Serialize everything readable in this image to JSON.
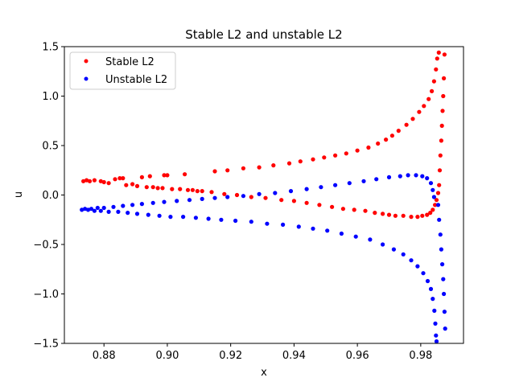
{
  "chart_data": {
    "type": "scatter",
    "title": "Stable L2 and unstable L2",
    "xlabel": "x",
    "ylabel": "u",
    "xlim": [
      0.8675,
      0.9935
    ],
    "ylim": [
      -1.5,
      1.5
    ],
    "xticks": [
      0.88,
      0.9,
      0.92,
      0.94,
      0.96,
      0.98
    ],
    "xtick_labels": [
      "0.88",
      "0.90",
      "0.92",
      "0.94",
      "0.96",
      "0.98"
    ],
    "yticks": [
      -1.5,
      -1.0,
      -0.5,
      0.0,
      0.5,
      1.0,
      1.5
    ],
    "ytick_labels": [
      "−1.5",
      "−1.0",
      "−0.5",
      "0.0",
      "0.5",
      "1.0",
      "1.5"
    ],
    "grid": false,
    "legend_position": "top-left",
    "series": [
      {
        "name": "Stable L2",
        "color": "#ff0000",
        "points": [
          [
            0.8735,
            0.14
          ],
          [
            0.8745,
            0.15
          ],
          [
            0.8755,
            0.14
          ],
          [
            0.877,
            0.15
          ],
          [
            0.879,
            0.14
          ],
          [
            0.88,
            0.13
          ],
          [
            0.8815,
            0.12
          ],
          [
            0.8835,
            0.16
          ],
          [
            0.885,
            0.17
          ],
          [
            0.886,
            0.17
          ],
          [
            0.887,
            0.1
          ],
          [
            0.889,
            0.11
          ],
          [
            0.8905,
            0.09
          ],
          [
            0.892,
            0.18
          ],
          [
            0.8935,
            0.08
          ],
          [
            0.8945,
            0.19
          ],
          [
            0.8955,
            0.08
          ],
          [
            0.897,
            0.07
          ],
          [
            0.8985,
            0.07
          ],
          [
            0.899,
            0.2
          ],
          [
            0.9,
            0.2
          ],
          [
            0.9015,
            0.06
          ],
          [
            0.904,
            0.06
          ],
          [
            0.9055,
            0.21
          ],
          [
            0.9065,
            0.05
          ],
          [
            0.908,
            0.05
          ],
          [
            0.9095,
            0.04
          ],
          [
            0.911,
            0.04
          ],
          [
            0.914,
            0.03
          ],
          [
            0.915,
            0.24
          ],
          [
            0.918,
            0.01
          ],
          [
            0.919,
            0.25
          ],
          [
            0.922,
            0.0
          ],
          [
            0.924,
            0.27
          ],
          [
            0.9265,
            -0.02
          ],
          [
            0.929,
            0.28
          ],
          [
            0.931,
            -0.03
          ],
          [
            0.9335,
            0.3
          ],
          [
            0.936,
            -0.05
          ],
          [
            0.9385,
            0.32
          ],
          [
            0.94,
            -0.06
          ],
          [
            0.942,
            0.34
          ],
          [
            0.944,
            -0.08
          ],
          [
            0.946,
            0.36
          ],
          [
            0.948,
            -0.1
          ],
          [
            0.9495,
            0.38
          ],
          [
            0.952,
            -0.12
          ],
          [
            0.953,
            0.4
          ],
          [
            0.9555,
            -0.14
          ],
          [
            0.9565,
            0.42
          ],
          [
            0.959,
            -0.15
          ],
          [
            0.96,
            0.45
          ],
          [
            0.9625,
            -0.16
          ],
          [
            0.9635,
            0.48
          ],
          [
            0.9655,
            -0.18
          ],
          [
            0.9665,
            0.52
          ],
          [
            0.968,
            -0.19
          ],
          [
            0.969,
            0.56
          ],
          [
            0.97,
            -0.2
          ],
          [
            0.971,
            0.6
          ],
          [
            0.972,
            -0.21
          ],
          [
            0.973,
            0.65
          ],
          [
            0.9745,
            -0.21
          ],
          [
            0.9755,
            0.71
          ],
          [
            0.977,
            -0.22
          ],
          [
            0.9775,
            0.77
          ],
          [
            0.979,
            -0.22
          ],
          [
            0.9795,
            0.84
          ],
          [
            0.9805,
            -0.21
          ],
          [
            0.981,
            0.9
          ],
          [
            0.982,
            -0.2
          ],
          [
            0.9825,
            0.97
          ],
          [
            0.983,
            -0.18
          ],
          [
            0.9835,
            1.05
          ],
          [
            0.9838,
            -0.15
          ],
          [
            0.9842,
            1.15
          ],
          [
            0.9845,
            -0.1
          ],
          [
            0.9848,
            1.27
          ],
          [
            0.985,
            -0.05
          ],
          [
            0.9852,
            1.38
          ],
          [
            0.9855,
            0.02
          ],
          [
            0.9857,
            1.44
          ],
          [
            0.9858,
            0.1
          ],
          [
            0.986,
            0.25
          ],
          [
            0.9862,
            0.4
          ],
          [
            0.9865,
            0.55
          ],
          [
            0.9867,
            0.7
          ],
          [
            0.9869,
            0.85
          ],
          [
            0.9871,
            1.0
          ],
          [
            0.9873,
            1.18
          ],
          [
            0.9875,
            1.42
          ]
        ]
      },
      {
        "name": "Unstable L2",
        "color": "#0000ff",
        "points": [
          [
            0.873,
            -0.15
          ],
          [
            0.874,
            -0.14
          ],
          [
            0.875,
            -0.15
          ],
          [
            0.876,
            -0.14
          ],
          [
            0.877,
            -0.16
          ],
          [
            0.878,
            -0.13
          ],
          [
            0.879,
            -0.16
          ],
          [
            0.88,
            -0.13
          ],
          [
            0.8815,
            -0.17
          ],
          [
            0.883,
            -0.12
          ],
          [
            0.8845,
            -0.17
          ],
          [
            0.886,
            -0.11
          ],
          [
            0.8875,
            -0.18
          ],
          [
            0.889,
            -0.1
          ],
          [
            0.8905,
            -0.19
          ],
          [
            0.892,
            -0.09
          ],
          [
            0.894,
            -0.2
          ],
          [
            0.8955,
            -0.08
          ],
          [
            0.8975,
            -0.21
          ],
          [
            0.899,
            -0.07
          ],
          [
            0.901,
            -0.22
          ],
          [
            0.903,
            -0.06
          ],
          [
            0.905,
            -0.22
          ],
          [
            0.907,
            -0.05
          ],
          [
            0.909,
            -0.23
          ],
          [
            0.911,
            -0.04
          ],
          [
            0.913,
            -0.24
          ],
          [
            0.915,
            -0.03
          ],
          [
            0.917,
            -0.25
          ],
          [
            0.919,
            -0.02
          ],
          [
            0.9215,
            -0.26
          ],
          [
            0.924,
            -0.01
          ],
          [
            0.9265,
            -0.27
          ],
          [
            0.929,
            0.01
          ],
          [
            0.9315,
            -0.29
          ],
          [
            0.934,
            0.02
          ],
          [
            0.9365,
            -0.3
          ],
          [
            0.939,
            0.04
          ],
          [
            0.9415,
            -0.32
          ],
          [
            0.944,
            0.06
          ],
          [
            0.946,
            -0.34
          ],
          [
            0.9485,
            0.08
          ],
          [
            0.9505,
            -0.36
          ],
          [
            0.953,
            0.1
          ],
          [
            0.955,
            -0.39
          ],
          [
            0.9575,
            0.12
          ],
          [
            0.9595,
            -0.42
          ],
          [
            0.962,
            0.14
          ],
          [
            0.964,
            -0.45
          ],
          [
            0.966,
            0.16
          ],
          [
            0.968,
            -0.5
          ],
          [
            0.97,
            0.18
          ],
          [
            0.9715,
            -0.55
          ],
          [
            0.9735,
            0.19
          ],
          [
            0.9745,
            -0.6
          ],
          [
            0.976,
            0.2
          ],
          [
            0.977,
            -0.66
          ],
          [
            0.9785,
            0.2
          ],
          [
            0.979,
            -0.72
          ],
          [
            0.9805,
            0.19
          ],
          [
            0.9808,
            -0.79
          ],
          [
            0.982,
            0.17
          ],
          [
            0.9822,
            -0.87
          ],
          [
            0.9832,
            0.12
          ],
          [
            0.9832,
            -0.95
          ],
          [
            0.9838,
            0.05
          ],
          [
            0.9838,
            -1.05
          ],
          [
            0.9842,
            -0.02
          ],
          [
            0.9843,
            -1.17
          ],
          [
            0.9846,
            -1.3
          ],
          [
            0.9848,
            -1.42
          ],
          [
            0.985,
            -1.48
          ],
          [
            0.9855,
            -0.1
          ],
          [
            0.9858,
            -0.25
          ],
          [
            0.9862,
            -0.4
          ],
          [
            0.9865,
            -0.55
          ],
          [
            0.9868,
            -0.7
          ],
          [
            0.9871,
            -0.85
          ],
          [
            0.9873,
            -1.0
          ],
          [
            0.9875,
            -1.18
          ],
          [
            0.9877,
            -1.35
          ]
        ]
      }
    ]
  }
}
